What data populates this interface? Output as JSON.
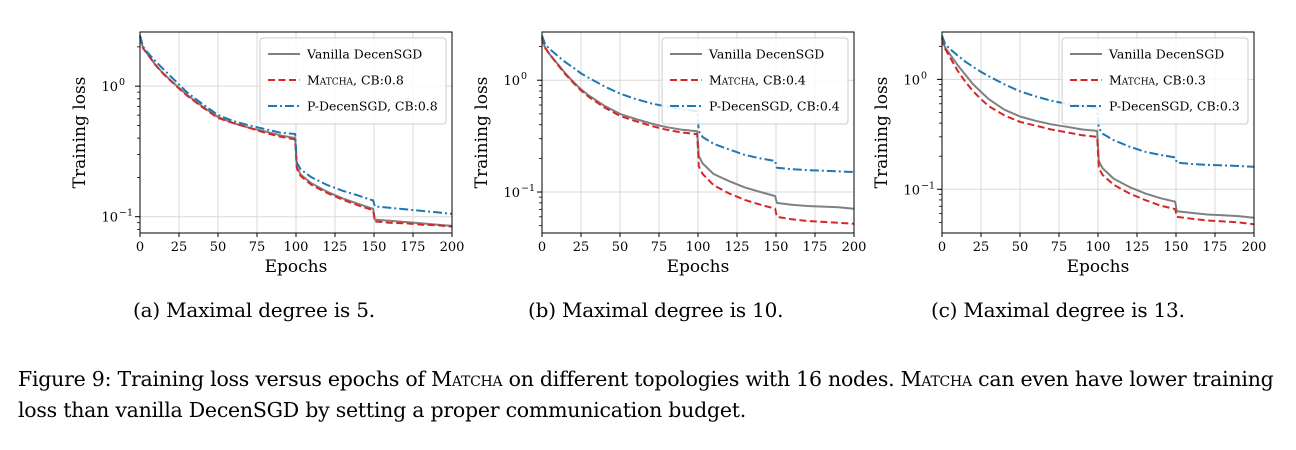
{
  "figure": {
    "caption_label": "Figure 9:",
    "caption_part1": " Training loss versus epochs of ",
    "caption_method1": "Matcha",
    "caption_part2": " on different topologies with 16 nodes. ",
    "caption_method2": "Matcha",
    "caption_part3": " can even have lower training loss than vanilla DecenSGD by setting a proper communication budget."
  },
  "colors": {
    "vanilla": "#808080",
    "matcha": "#d62728",
    "pdecen": "#1f77b4",
    "grid": "#d9d9d9"
  },
  "chart_data": [
    {
      "type": "line",
      "caption": "(a) Maximal degree is 5.",
      "xlabel": "Epochs",
      "ylabel": "Training loss",
      "yscale": "log",
      "xlim": [
        0,
        200
      ],
      "ylim": [
        0.075,
        2.6
      ],
      "xticks": [
        0,
        25,
        50,
        75,
        100,
        125,
        150,
        175,
        200
      ],
      "yticks": [
        {
          "value": 1,
          "label": "10^0"
        },
        {
          "value": 0.1,
          "label": "10^-1"
        }
      ],
      "grid": true,
      "legend": "top-right",
      "series": [
        {
          "name": "Vanilla DecenSGD",
          "style": "solid",
          "color": "#808080",
          "x": [
            0,
            2,
            5,
            10,
            15,
            20,
            25,
            30,
            40,
            50,
            60,
            70,
            80,
            90,
            99.5,
            100.5,
            103,
            110,
            120,
            130,
            140,
            149.5,
            150.5,
            160,
            170,
            180,
            190,
            200
          ],
          "y": [
            2.4,
            1.95,
            1.75,
            1.45,
            1.25,
            1.1,
            0.97,
            0.86,
            0.7,
            0.58,
            0.52,
            0.48,
            0.45,
            0.42,
            0.4,
            0.24,
            0.21,
            0.18,
            0.155,
            0.138,
            0.125,
            0.115,
            0.095,
            0.093,
            0.091,
            0.089,
            0.087,
            0.085
          ]
        },
        {
          "name": "Matcha, CB:0.8",
          "style": "dashed",
          "color": "#d62728",
          "x": [
            0,
            2,
            5,
            10,
            15,
            20,
            25,
            30,
            40,
            50,
            60,
            70,
            80,
            90,
            99.5,
            100.5,
            103,
            110,
            120,
            130,
            140,
            149.5,
            150.5,
            160,
            170,
            180,
            190,
            200
          ],
          "y": [
            2.4,
            1.95,
            1.75,
            1.45,
            1.24,
            1.09,
            0.96,
            0.85,
            0.69,
            0.57,
            0.52,
            0.48,
            0.44,
            0.41,
            0.39,
            0.235,
            0.205,
            0.175,
            0.152,
            0.135,
            0.122,
            0.112,
            0.092,
            0.09,
            0.089,
            0.087,
            0.086,
            0.084
          ]
        },
        {
          "name": "P-DecenSGD, CB:0.8",
          "style": "dashdot",
          "color": "#1f77b4",
          "x": [
            0,
            2,
            5,
            10,
            15,
            20,
            25,
            30,
            40,
            50,
            60,
            70,
            80,
            90,
            99.5,
            100.5,
            103,
            110,
            120,
            130,
            140,
            149.5,
            150.5,
            160,
            170,
            180,
            190,
            200
          ],
          "y": [
            2.45,
            2.0,
            1.8,
            1.55,
            1.35,
            1.18,
            1.03,
            0.9,
            0.73,
            0.6,
            0.54,
            0.5,
            0.47,
            0.44,
            0.43,
            0.26,
            0.23,
            0.2,
            0.175,
            0.158,
            0.145,
            0.133,
            0.12,
            0.117,
            0.114,
            0.111,
            0.108,
            0.105
          ]
        }
      ]
    },
    {
      "type": "line",
      "caption": "(b) Maximal degree is 10.",
      "xlabel": "Epochs",
      "ylabel": "Training loss",
      "yscale": "log",
      "xlim": [
        0,
        200
      ],
      "ylim": [
        0.043,
        2.7
      ],
      "xticks": [
        0,
        25,
        50,
        75,
        100,
        125,
        150,
        175,
        200
      ],
      "yticks": [
        {
          "value": 1,
          "label": "10^0"
        },
        {
          "value": 0.1,
          "label": "10^-1"
        }
      ],
      "grid": true,
      "legend": "top-right",
      "series": [
        {
          "name": "Vanilla DecenSGD",
          "style": "solid",
          "color": "#808080",
          "x": [
            0,
            2,
            5,
            10,
            15,
            20,
            25,
            30,
            40,
            50,
            60,
            70,
            80,
            90,
            99.5,
            100.5,
            103,
            110,
            120,
            130,
            140,
            149.5,
            150.5,
            160,
            170,
            180,
            190,
            200
          ],
          "y": [
            2.4,
            1.95,
            1.7,
            1.4,
            1.15,
            0.97,
            0.83,
            0.73,
            0.59,
            0.5,
            0.45,
            0.41,
            0.38,
            0.36,
            0.35,
            0.21,
            0.18,
            0.145,
            0.125,
            0.11,
            0.1,
            0.092,
            0.08,
            0.077,
            0.075,
            0.074,
            0.073,
            0.071
          ]
        },
        {
          "name": "Matcha, CB:0.4",
          "style": "dashed",
          "color": "#d62728",
          "x": [
            0,
            2,
            5,
            10,
            15,
            20,
            25,
            30,
            40,
            50,
            60,
            70,
            80,
            90,
            99.5,
            100.5,
            103,
            110,
            120,
            130,
            140,
            149.5,
            150.5,
            160,
            170,
            180,
            190,
            200
          ],
          "y": [
            2.4,
            1.95,
            1.7,
            1.38,
            1.13,
            0.95,
            0.81,
            0.71,
            0.57,
            0.48,
            0.43,
            0.39,
            0.36,
            0.34,
            0.33,
            0.17,
            0.145,
            0.115,
            0.097,
            0.085,
            0.077,
            0.071,
            0.06,
            0.057,
            0.055,
            0.054,
            0.053,
            0.052
          ]
        },
        {
          "name": "P-DecenSGD, CB:0.4",
          "style": "dashdot",
          "color": "#1f77b4",
          "x": [
            0,
            2,
            5,
            10,
            15,
            20,
            25,
            30,
            40,
            50,
            60,
            70,
            80,
            90,
            99.5,
            100.5,
            103,
            110,
            120,
            130,
            140,
            149.5,
            150.5,
            160,
            170,
            180,
            190,
            200
          ],
          "y": [
            2.5,
            2.1,
            1.9,
            1.65,
            1.45,
            1.3,
            1.15,
            1.05,
            0.88,
            0.76,
            0.68,
            0.62,
            0.58,
            0.55,
            0.53,
            0.35,
            0.31,
            0.27,
            0.24,
            0.215,
            0.2,
            0.19,
            0.165,
            0.16,
            0.157,
            0.155,
            0.153,
            0.151
          ]
        }
      ]
    },
    {
      "type": "line",
      "caption": "(c) Maximal degree is 13.",
      "xlabel": "Epochs",
      "ylabel": "Training loss",
      "yscale": "log",
      "xlim": [
        0,
        200
      ],
      "ylim": [
        0.04,
        2.7
      ],
      "xticks": [
        0,
        25,
        50,
        75,
        100,
        125,
        150,
        175,
        200
      ],
      "yticks": [
        {
          "value": 1,
          "label": "10^0"
        },
        {
          "value": 0.1,
          "label": "10^-1"
        }
      ],
      "grid": true,
      "legend": "top-right",
      "series": [
        {
          "name": "Vanilla DecenSGD",
          "style": "solid",
          "color": "#808080",
          "x": [
            0,
            2,
            5,
            10,
            15,
            20,
            25,
            30,
            40,
            50,
            60,
            70,
            80,
            90,
            99.5,
            100.5,
            103,
            110,
            120,
            130,
            140,
            149.5,
            150.5,
            160,
            170,
            180,
            190,
            200
          ],
          "y": [
            2.4,
            1.95,
            1.7,
            1.35,
            1.1,
            0.9,
            0.77,
            0.66,
            0.53,
            0.46,
            0.42,
            0.39,
            0.37,
            0.35,
            0.34,
            0.18,
            0.155,
            0.125,
            0.105,
            0.092,
            0.083,
            0.077,
            0.063,
            0.061,
            0.059,
            0.058,
            0.057,
            0.055
          ]
        },
        {
          "name": "Matcha, CB:0.3",
          "style": "dashed",
          "color": "#d62728",
          "x": [
            0,
            2,
            5,
            10,
            15,
            20,
            25,
            30,
            40,
            50,
            60,
            70,
            80,
            90,
            99.5,
            100.5,
            103,
            110,
            120,
            130,
            140,
            149.5,
            150.5,
            160,
            170,
            180,
            190,
            200
          ],
          "y": [
            2.35,
            1.9,
            1.6,
            1.2,
            0.95,
            0.78,
            0.66,
            0.57,
            0.47,
            0.41,
            0.38,
            0.35,
            0.33,
            0.31,
            0.3,
            0.155,
            0.135,
            0.11,
            0.092,
            0.08,
            0.071,
            0.066,
            0.056,
            0.054,
            0.052,
            0.051,
            0.05,
            0.048
          ]
        },
        {
          "name": "P-DecenSGD, CB:0.3",
          "style": "dashdot",
          "color": "#1f77b4",
          "x": [
            0,
            2,
            5,
            10,
            15,
            20,
            25,
            30,
            40,
            50,
            60,
            70,
            80,
            90,
            99.5,
            100.5,
            103,
            110,
            120,
            130,
            140,
            149.5,
            150.5,
            160,
            170,
            180,
            190,
            200
          ],
          "y": [
            2.5,
            2.1,
            1.9,
            1.65,
            1.45,
            1.3,
            1.17,
            1.07,
            0.9,
            0.78,
            0.7,
            0.64,
            0.6,
            0.57,
            0.55,
            0.36,
            0.32,
            0.28,
            0.245,
            0.22,
            0.205,
            0.195,
            0.175,
            0.17,
            0.167,
            0.165,
            0.163,
            0.16
          ]
        }
      ]
    }
  ]
}
